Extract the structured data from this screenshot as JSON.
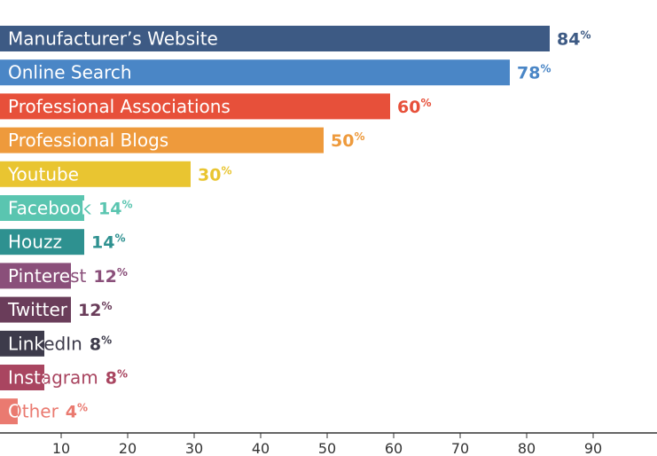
{
  "chart_data": {
    "type": "bar",
    "orientation": "horizontal",
    "title": "",
    "xlabel": "",
    "ylabel": "",
    "xlim": [
      0,
      100
    ],
    "xticks": [
      10,
      20,
      30,
      40,
      50,
      60,
      70,
      80,
      90
    ],
    "value_suffix": "%",
    "grid": false,
    "categories": [
      "Manufacturer’s Website",
      "Online Search",
      "Professional Associations",
      "Professional Blogs",
      "Youtube",
      "Facebook",
      "Houzz",
      "Pinterest",
      "Twitter",
      "LinkedIn",
      "Instagram",
      "Other"
    ],
    "values": [
      84,
      78,
      60,
      50,
      30,
      14,
      14,
      12,
      12,
      8,
      8,
      4
    ],
    "colors": [
      "#3d5a84",
      "#4a86c6",
      "#e7503a",
      "#ee9a3c",
      "#e9c531",
      "#5ac5b0",
      "#2e9190",
      "#8a4f7a",
      "#6a3d5a",
      "#3d3b4b",
      "#a94560",
      "#ea7a70"
    ]
  }
}
